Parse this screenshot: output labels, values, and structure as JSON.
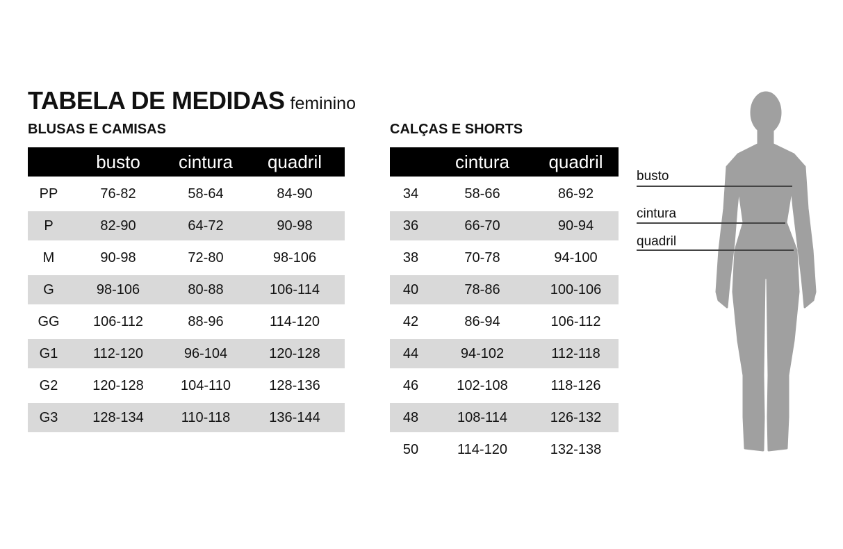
{
  "title": {
    "main": "TABELA DE MEDIDAS",
    "sub": "feminino"
  },
  "blusas": {
    "heading": "BLUSAS E CAMISAS",
    "columns": [
      "",
      "busto",
      "cintura",
      "quadril"
    ],
    "rows": [
      [
        "PP",
        "76-82",
        "58-64",
        "84-90"
      ],
      [
        "P",
        "82-90",
        "64-72",
        "90-98"
      ],
      [
        "M",
        "90-98",
        "72-80",
        "98-106"
      ],
      [
        "G",
        "98-106",
        "80-88",
        "106-114"
      ],
      [
        "GG",
        "106-112",
        "88-96",
        "114-120"
      ],
      [
        "G1",
        "112-120",
        "96-104",
        "120-128"
      ],
      [
        "G2",
        "120-128",
        "104-110",
        "128-136"
      ],
      [
        "G3",
        "128-134",
        "110-118",
        "136-144"
      ]
    ]
  },
  "calcas": {
    "heading": "CALÇAS E SHORTS",
    "columns": [
      "",
      "cintura",
      "quadril"
    ],
    "rows": [
      [
        "34",
        "58-66",
        "86-92"
      ],
      [
        "36",
        "66-70",
        "90-94"
      ],
      [
        "38",
        "70-78",
        "94-100"
      ],
      [
        "40",
        "78-86",
        "100-106"
      ],
      [
        "42",
        "86-94",
        "106-112"
      ],
      [
        "44",
        "94-102",
        "112-118"
      ],
      [
        "46",
        "102-108",
        "118-126"
      ],
      [
        "48",
        "108-114",
        "126-132"
      ],
      [
        "50",
        "114-120",
        "132-138"
      ]
    ]
  },
  "figure": {
    "labels": {
      "busto": "busto",
      "cintura": "cintura",
      "quadril": "quadril"
    },
    "color": "#a0a0a0"
  },
  "colors": {
    "header": "#000000",
    "alt_row": "#d9d9d9"
  }
}
